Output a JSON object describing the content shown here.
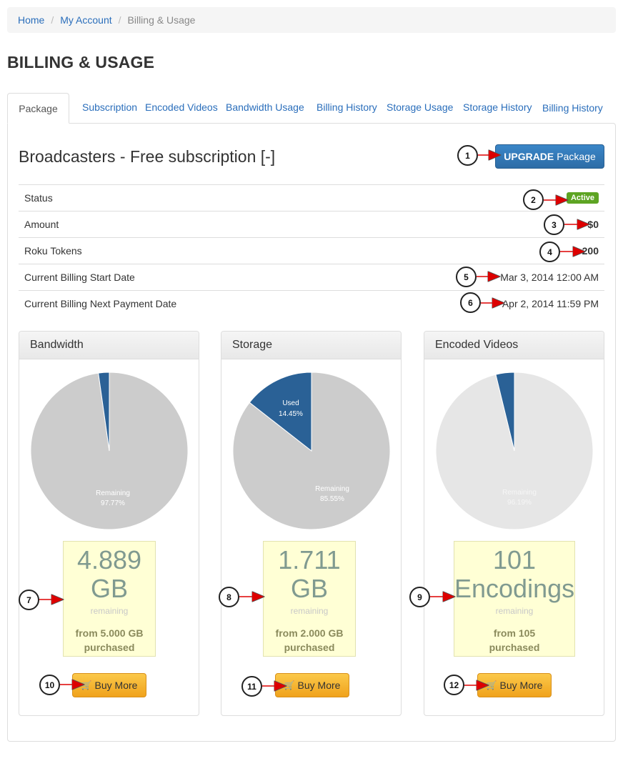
{
  "breadcrumb": {
    "home": "Home",
    "account": "My Account",
    "current": "Billing & Usage"
  },
  "page_title": "BILLING & USAGE",
  "tabs": [
    "Package",
    "Subscription",
    "Encoded Videos",
    "Bandwidth Usage",
    "Billing History",
    "Storage Usage",
    "Storage History",
    "Billing History"
  ],
  "package": {
    "title": "Broadcasters - Free subscription [-]",
    "upgrade_bold": "UPGRADE",
    "upgrade_rest": "Package"
  },
  "info": [
    {
      "label": "Status",
      "value": "Active"
    },
    {
      "label": "Amount",
      "value": "$0"
    },
    {
      "label": "Roku Tokens",
      "value": "200"
    },
    {
      "label": "Current Billing Start Date",
      "value": "Mar 3, 2014 12:00 AM"
    },
    {
      "label": "Current Billing Next Payment Date",
      "value": "Apr 2, 2014 11:59 PM"
    }
  ],
  "cards": [
    {
      "title": "Bandwidth",
      "used_label": "",
      "used_pct": "",
      "used_fraction": 0.0223,
      "remaining_label": "Remaining",
      "remaining_pct": "97.77%",
      "amount": "4.889",
      "unit": "GB",
      "remaining_word": "remaining",
      "from_line": "from 5.000 GB",
      "purchased": "purchased",
      "buy": "Buy More"
    },
    {
      "title": "Storage",
      "used_label": "Used",
      "used_pct": "14.45%",
      "used_fraction": 0.1445,
      "remaining_label": "Remaining",
      "remaining_pct": "85.55%",
      "amount": "1.711",
      "unit": "GB",
      "remaining_word": "remaining",
      "from_line": "from 2.000 GB",
      "purchased": "purchased",
      "buy": "Buy More"
    },
    {
      "title": "Encoded Videos",
      "used_label": "",
      "used_pct": "",
      "used_fraction": 0.0381,
      "remaining_label": "Remaining",
      "remaining_pct": "96.19%",
      "amount": "101",
      "unit": "Encodings",
      "remaining_word": "remaining",
      "from_line": "from 105",
      "purchased": "purchased",
      "buy": "Buy More"
    }
  ],
  "callouts": [
    "1",
    "2",
    "3",
    "4",
    "5",
    "6",
    "7",
    "8",
    "9",
    "10",
    "11",
    "12"
  ],
  "colors": {
    "link": "#2a6ebb",
    "used_slice": "#2a6196",
    "remaining_slice": "#cccccc",
    "remaining_slice_light": "#e6e6e6",
    "active_badge": "#5da423",
    "upgrade_button": "#337ab7",
    "buy_button": "#f0ad4e",
    "remaining_box": "#ffffd5",
    "arrow": "#dd0000"
  },
  "icons": {
    "cart": "shopping-cart-icon",
    "arrow": "red-arrow-icon"
  }
}
